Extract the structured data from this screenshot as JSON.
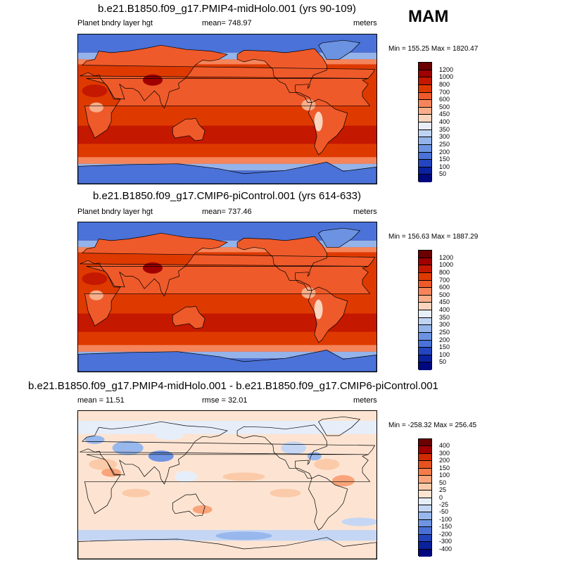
{
  "season": "MAM",
  "panels": [
    {
      "title": "b.e21.B1850.f09_g17.PMIP4-midHolo.001 (yrs 90-109)",
      "left_text": "Planet bndry layer hgt",
      "center_text": "mean= 748.97",
      "right_text": "meters",
      "minmax": "Min = 155.25 Max = 1820.47",
      "colorbar": {
        "labels": [
          "1200",
          "1000",
          "800",
          "700",
          "600",
          "500",
          "450",
          "400",
          "350",
          "300",
          "250",
          "200",
          "150",
          "100",
          "50"
        ],
        "colors": [
          "#6b0000",
          "#a00000",
          "#c41800",
          "#de3a00",
          "#ef5a2a",
          "#f6845a",
          "#f9ad8a",
          "#fbd4bd",
          "#e8eef8",
          "#bfd3f2",
          "#93b3ea",
          "#6b93e2",
          "#4a72d8",
          "#2345c0",
          "#0a21a0",
          "#000880"
        ]
      },
      "map_style": "full"
    },
    {
      "title": "b.e21.B1850.f09_g17.CMIP6-piControl.001 (yrs 614-633)",
      "left_text": "Planet bndry layer hgt",
      "center_text": "mean= 737.46",
      "right_text": "meters",
      "minmax": "Min = 156.63 Max = 1887.29",
      "colorbar": {
        "labels": [
          "1200",
          "1000",
          "800",
          "700",
          "600",
          "500",
          "450",
          "400",
          "350",
          "300",
          "250",
          "200",
          "150",
          "100",
          "50"
        ],
        "colors": [
          "#6b0000",
          "#a00000",
          "#c41800",
          "#de3a00",
          "#ef5a2a",
          "#f6845a",
          "#f9ad8a",
          "#fbd4bd",
          "#e8eef8",
          "#bfd3f2",
          "#93b3ea",
          "#6b93e2",
          "#4a72d8",
          "#2345c0",
          "#0a21a0",
          "#000880"
        ]
      },
      "map_style": "full"
    },
    {
      "title": "b.e21.B1850.f09_g17.PMIP4-midHolo.001 - b.e21.B1850.f09_g17.CMIP6-piControl.001",
      "left_text": "mean =  11.51",
      "center_text": "rmse =  32.01",
      "right_text": "meters",
      "minmax": "Min = -258.32 Max = 256.45",
      "colorbar": {
        "labels": [
          "400",
          "300",
          "200",
          "150",
          "100",
          "50",
          "25",
          "0",
          "-25",
          "-50",
          "-100",
          "-150",
          "-200",
          "-300",
          "-400"
        ],
        "colors": [
          "#6b0000",
          "#a00000",
          "#d12a00",
          "#e8521e",
          "#f47c4a",
          "#f9a47a",
          "#fbcaa9",
          "#fde4d2",
          "#e6eefa",
          "#c4d6f4",
          "#98b7ec",
          "#6f95e2",
          "#4a70d6",
          "#2343bc",
          "#0a219c",
          "#000880"
        ]
      },
      "map_style": "diff"
    }
  ]
}
